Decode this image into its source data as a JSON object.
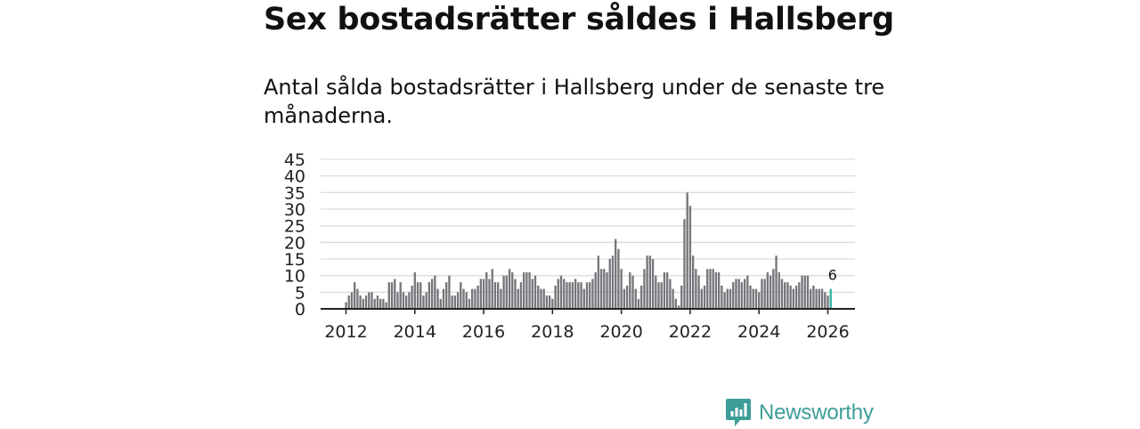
{
  "title": "Sex bostadsrätter såldes i Hallsberg",
  "subtitle": "Antal sålda bostadsrätter i Hallsberg under de senaste tre månaderna.",
  "colors": {
    "bar": "#75757a",
    "highlight": "#2fb3a3",
    "grid": "#dcdcdc",
    "axis": "#222222",
    "brand": "#3d9d97"
  },
  "brand": {
    "name": "Newsworthy",
    "icon": "newsworthy-logo-icon"
  },
  "chart_data": {
    "type": "bar",
    "title": "Antal sålda bostadsrätter i Hallsberg",
    "xlabel": "",
    "ylabel": "",
    "ylim": [
      0,
      45
    ],
    "yticks": [
      "0",
      "5",
      "10",
      "15",
      "20",
      "25",
      "30",
      "35",
      "40",
      "45"
    ],
    "xticks": [
      "2012",
      "2014",
      "2016",
      "2018",
      "2020",
      "2022",
      "2024",
      "2026"
    ],
    "start": "2012-01",
    "end": "2026-02",
    "highlight_label": "6",
    "values": [
      2,
      4,
      5,
      8,
      6,
      4,
      3,
      4,
      5,
      5,
      3,
      4,
      3,
      3,
      2,
      8,
      8,
      9,
      5,
      8,
      5,
      4,
      5,
      7,
      11,
      8,
      8,
      4,
      5,
      8,
      9,
      10,
      6,
      3,
      6,
      8,
      10,
      4,
      4,
      5,
      8,
      6,
      5,
      3,
      6,
      6,
      7,
      9,
      9,
      11,
      9,
      12,
      8,
      8,
      6,
      10,
      10,
      12,
      11,
      9,
      6,
      8,
      11,
      11,
      11,
      9,
      10,
      7,
      6,
      6,
      4,
      4,
      3,
      7,
      9,
      10,
      9,
      8,
      8,
      8,
      9,
      8,
      8,
      6,
      8,
      8,
      9,
      11,
      16,
      12,
      12,
      11,
      15,
      16,
      21,
      18,
      12,
      6,
      7,
      11,
      10,
      6,
      3,
      7,
      12,
      16,
      16,
      15,
      10,
      8,
      8,
      11,
      11,
      9,
      6,
      3,
      1,
      7,
      27,
      35,
      31,
      16,
      12,
      10,
      6,
      7,
      12,
      12,
      12,
      11,
      11,
      7,
      5,
      6,
      6,
      8,
      9,
      9,
      8,
      9,
      10,
      7,
      6,
      6,
      5,
      9,
      9,
      11,
      10,
      12,
      16,
      11,
      9,
      8,
      8,
      7,
      6,
      7,
      8,
      10,
      10,
      10,
      6,
      7,
      6,
      6,
      6,
      5,
      4,
      6
    ]
  }
}
